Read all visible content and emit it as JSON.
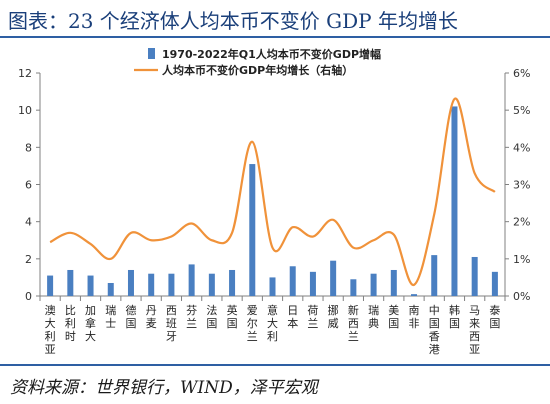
{
  "title": "图表：23 个经济体人均本币不变价 GDP 年均增长",
  "source": "资料来源：世界银行，WIND，泽平宏观",
  "chart_data": {
    "type": "bar+line",
    "categories": [
      "澳大利亚",
      "比利时",
      "加拿大",
      "瑞士",
      "德国",
      "丹麦",
      "西班牙",
      "芬兰",
      "法国",
      "英国",
      "爱尔兰",
      "意大利",
      "日本",
      "荷兰",
      "挪威",
      "新西兰",
      "瑞典",
      "美国",
      "南非",
      "中国香港",
      "韩国",
      "马来西亚",
      "泰国"
    ],
    "series": [
      {
        "name": "1970-2022年Q1人均本币不变价GDP增幅",
        "type": "bar",
        "axis": "left",
        "color": "#4a7fc1",
        "values": [
          1.1,
          1.4,
          1.1,
          0.7,
          1.4,
          1.2,
          1.2,
          1.7,
          1.2,
          1.4,
          7.1,
          1.0,
          1.6,
          1.3,
          1.9,
          0.9,
          1.2,
          1.4,
          0.1,
          2.2,
          10.2,
          2.1,
          1.3
        ]
      },
      {
        "name": "人均本币不变价GDP年均增长（右轴）",
        "type": "line",
        "axis": "right",
        "color": "#f0923a",
        "values": [
          1.45,
          1.7,
          1.4,
          1.0,
          1.7,
          1.5,
          1.6,
          1.95,
          1.5,
          1.7,
          4.15,
          1.3,
          1.85,
          1.6,
          2.05,
          1.3,
          1.5,
          1.65,
          0.3,
          2.2,
          5.3,
          3.3,
          2.8
        ]
      }
    ],
    "y_left": {
      "min": 0,
      "max": 12,
      "ticks": [
        "0",
        "2",
        "4",
        "6",
        "8",
        "10",
        "12"
      ]
    },
    "y_right": {
      "min": 0,
      "max": 6,
      "ticks": [
        "0%",
        "1%",
        "2%",
        "3%",
        "4%",
        "5%",
        "6%"
      ]
    },
    "legend_placement": "top-center",
    "grid": false
  }
}
